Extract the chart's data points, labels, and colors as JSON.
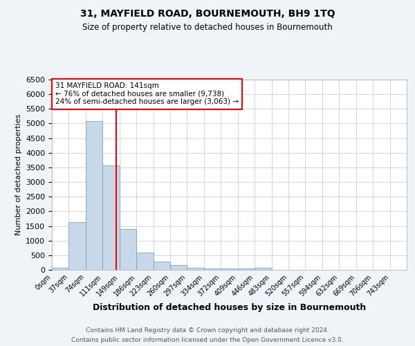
{
  "title1": "31, MAYFIELD ROAD, BOURNEMOUTH, BH9 1TQ",
  "title2": "Size of property relative to detached houses in Bournemouth",
  "xlabel": "Distribution of detached houses by size in Bournemouth",
  "ylabel": "Number of detached properties",
  "bin_labels": [
    "0sqm",
    "37sqm",
    "74sqm",
    "111sqm",
    "149sqm",
    "186sqm",
    "223sqm",
    "260sqm",
    "297sqm",
    "334sqm",
    "372sqm",
    "409sqm",
    "446sqm",
    "483sqm",
    "520sqm",
    "557sqm",
    "594sqm",
    "632sqm",
    "669sqm",
    "706sqm",
    "743sqm"
  ],
  "bar_heights": [
    75,
    1625,
    5075,
    3575,
    1400,
    590,
    295,
    155,
    80,
    55,
    55,
    55,
    70,
    0,
    0,
    0,
    0,
    0,
    0,
    0,
    0
  ],
  "bar_color": "#c8d8e8",
  "bar_edge_color": "#6699bb",
  "property_line_x": 3.789,
  "property_sqm": 141,
  "annotation_text": "31 MAYFIELD ROAD: 141sqm\n← 76% of detached houses are smaller (9,738)\n24% of semi-detached houses are larger (3,063) →",
  "box_color": "white",
  "box_edge_color": "red",
  "vline_color": "red",
  "ylim": [
    0,
    6500
  ],
  "yticks": [
    0,
    500,
    1000,
    1500,
    2000,
    2500,
    3000,
    3500,
    4000,
    4500,
    5000,
    5500,
    6000,
    6500
  ],
  "footer1": "Contains HM Land Registry data © Crown copyright and database right 2024.",
  "footer2": "Contains public sector information licensed under the Open Government Licence v3.0.",
  "bg_color": "#f0f4f8",
  "plot_bg_color": "white",
  "grid_color": "#c0c8d0"
}
